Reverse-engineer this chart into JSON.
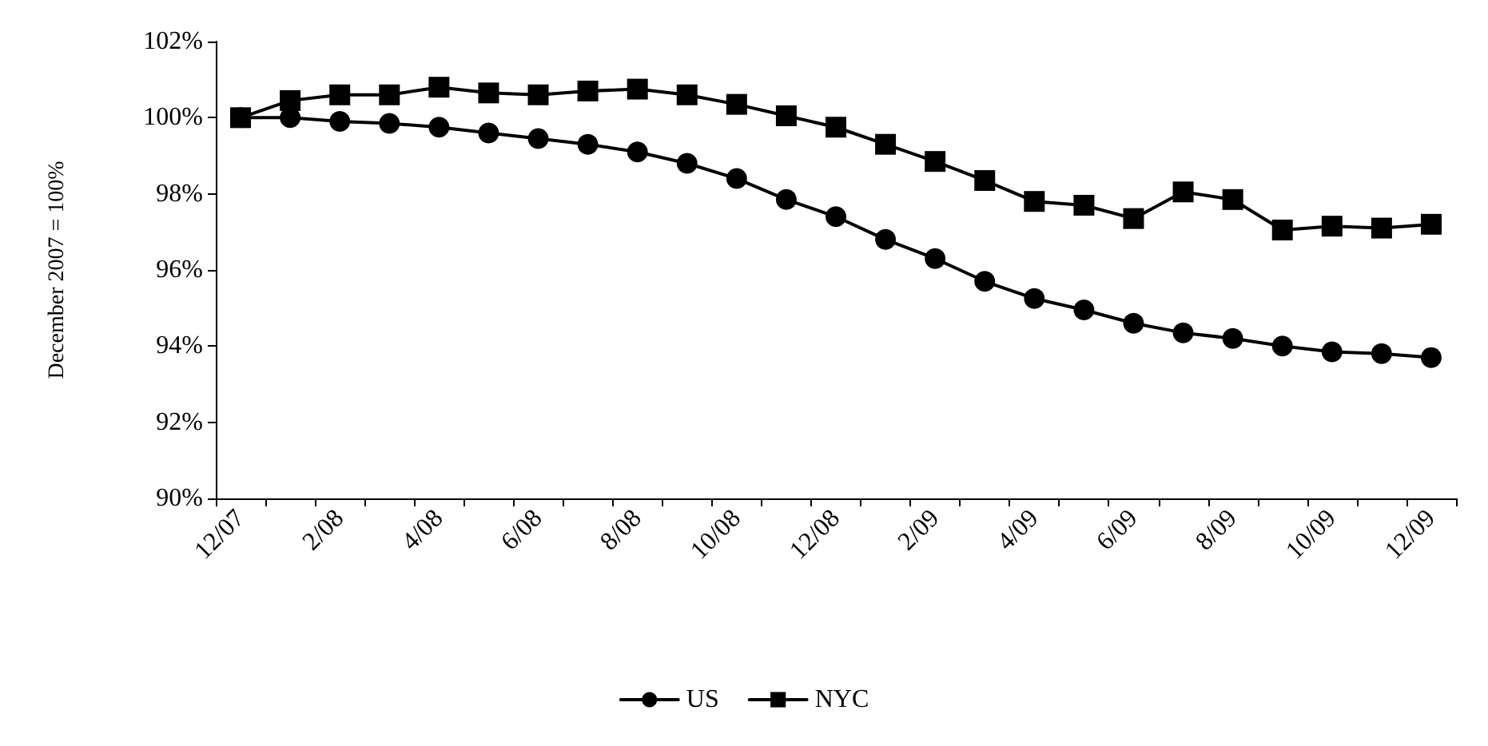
{
  "chart_data": {
    "type": "line",
    "ylabel": "December 2007 = 100%",
    "categories": [
      "12/07",
      null,
      "2/08",
      null,
      "4/08",
      null,
      "6/08",
      null,
      "8/08",
      null,
      "10/08",
      null,
      "12/08",
      null,
      "2/09",
      null,
      "4/09",
      null,
      "6/09",
      null,
      "8/09",
      null,
      "10/09",
      null,
      "12/09"
    ],
    "series": [
      {
        "name": "US",
        "color": "#000000",
        "marker": "circle",
        "values": [
          100,
          100,
          99.9,
          99.85,
          99.75,
          99.6,
          99.45,
          99.3,
          99.1,
          98.8,
          98.4,
          97.85,
          97.4,
          96.8,
          96.3,
          95.7,
          95.25,
          94.95,
          94.6,
          94.35,
          94.2,
          94.0,
          93.85,
          93.8,
          93.7
        ]
      },
      {
        "name": "NYC",
        "color": "#000000",
        "marker": "square",
        "values": [
          100,
          100.45,
          100.6,
          100.6,
          100.8,
          100.65,
          100.6,
          100.7,
          100.75,
          100.6,
          100.35,
          100.05,
          99.75,
          99.3,
          98.85,
          98.35,
          97.8,
          97.7,
          97.35,
          98.05,
          97.85,
          97.05,
          97.15,
          97.1,
          97.2
        ]
      }
    ],
    "ylim": [
      90,
      102
    ],
    "yticks": [
      {
        "value": 90,
        "label": "90%"
      },
      {
        "value": 92,
        "label": "92%"
      },
      {
        "value": 94,
        "label": "94%"
      },
      {
        "value": 96,
        "label": "96%"
      },
      {
        "value": 98,
        "label": "98%"
      },
      {
        "value": 100,
        "label": "100%"
      },
      {
        "value": 102,
        "label": "102%"
      }
    ],
    "grid": false,
    "legend": "bottom",
    "line_style": "solid"
  }
}
